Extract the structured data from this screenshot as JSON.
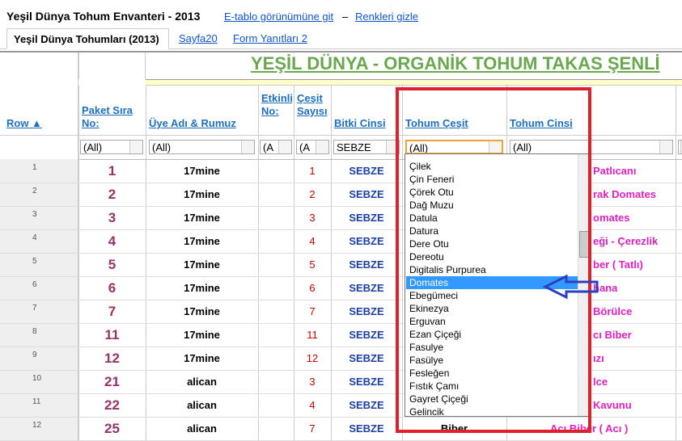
{
  "header": {
    "title": "Yeşil Dünya Tohum Envanteri - 2013",
    "link_sheet_view": "E-tablo görünümüne git",
    "separator": "–",
    "link_hide_colors": "Renkleri gizle"
  },
  "tabs": [
    "Yeşil Dünya Tohumları (2013)",
    "Sayfa20",
    "Form Yanıtları 2"
  ],
  "sheet": {
    "banner": "YEŞİL DÜNYA - ORGANİK TOHUM TAKAS ŞENLİ",
    "row_header": "Row ▲",
    "columns": [
      "Paket Sıra No:",
      "Üye Adı & Rumuz",
      "Etkinli No:",
      "Çeşit Sayısı",
      "Bitki Cinsi",
      "Tohum Çeşit",
      "Tohum Cinsi"
    ],
    "filters": [
      "(All)",
      "(All)",
      "(A",
      "(A",
      "SEBZE",
      "(All)",
      "(All)"
    ],
    "row_numbers": [
      1,
      2,
      3,
      4,
      5,
      6,
      7,
      8,
      9,
      10,
      11,
      12
    ],
    "rows": [
      [
        1,
        "17mine",
        1,
        "SEBZE",
        "",
        "Patlıcanı"
      ],
      [
        2,
        "17mine",
        2,
        "SEBZE",
        "",
        "rak Domates"
      ],
      [
        3,
        "17mine",
        3,
        "SEBZE",
        "",
        "omates"
      ],
      [
        4,
        "17mine",
        4,
        "SEBZE",
        "",
        "eği - Çerezlik"
      ],
      [
        5,
        "17mine",
        5,
        "SEBZE",
        "",
        "ber ( Tatlı)"
      ],
      [
        6,
        "17mine",
        6,
        "SEBZE",
        "",
        "hana"
      ],
      [
        7,
        "17mine",
        7,
        "SEBZE",
        "",
        "Börülce"
      ],
      [
        11,
        "17mine",
        11,
        "SEBZE",
        "",
        "cı Biber"
      ],
      [
        12,
        "17mine",
        12,
        "SEBZE",
        "",
        "ızı"
      ],
      [
        21,
        "alican",
        3,
        "SEBZE",
        "",
        "lce"
      ],
      [
        22,
        "alican",
        4,
        "SEBZE",
        "",
        "Kavunu"
      ],
      [
        25,
        "alican",
        7,
        "SEBZE",
        "Biber",
        "Acı Biber ( Acı )"
      ]
    ]
  },
  "dropdown": {
    "items": [
      "Çilek",
      "Çin Feneri",
      "Çörek Otu",
      "Dağ Muzu",
      "Datula",
      "Datura",
      "Dere Otu",
      "Dereotu",
      "Digitalis Purpurea",
      "Domates",
      "Ebegümeci",
      "Ekinezya",
      "Erguvan",
      "Ezan Çiçeği",
      "Fasulye",
      "Fasülye",
      "Fesleğen",
      "Fıstık Çamı",
      "Gayret Çiçeği",
      "Gelincik"
    ],
    "selected_index": 9
  }
}
